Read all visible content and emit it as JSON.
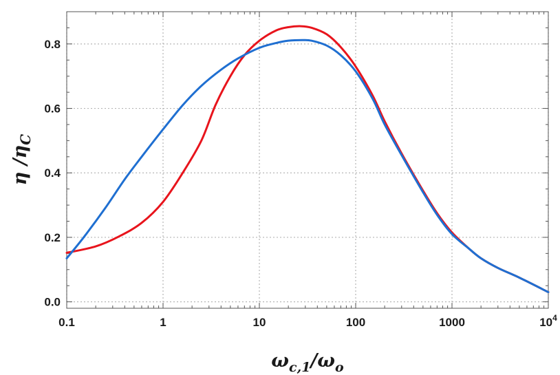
{
  "chart_data": {
    "type": "line",
    "title": "",
    "xlabel": {
      "main": "ω",
      "sub1": "c,1",
      "mid": "/ω",
      "sub2": "o"
    },
    "ylabel": {
      "main": "η /η",
      "sub": "C"
    },
    "x_scale": "log",
    "xlim": [
      0.1,
      10000
    ],
    "ylim": [
      -0.02,
      0.9
    ],
    "grid": true,
    "x_ticks": [
      {
        "value": 0.1,
        "label": "0.1"
      },
      {
        "value": 1,
        "label": "1"
      },
      {
        "value": 10,
        "label": "10"
      },
      {
        "value": 100,
        "label": "100"
      },
      {
        "value": 1000,
        "label": "1000"
      },
      {
        "value": 10000,
        "label": "10",
        "sup": "4"
      }
    ],
    "y_ticks": [
      {
        "value": 0.0,
        "label": "0.0"
      },
      {
        "value": 0.2,
        "label": "0.2"
      },
      {
        "value": 0.4,
        "label": "0.4"
      },
      {
        "value": 0.6,
        "label": "0.6"
      },
      {
        "value": 0.8,
        "label": "0.8"
      }
    ],
    "series": [
      {
        "color": "#e8141c",
        "x": [
          0.1,
          0.2,
          0.35,
          0.6,
          1,
          1.6,
          2.5,
          3.5,
          5,
          7,
          10,
          15,
          20,
          27,
          35,
          50,
          70,
          100,
          150,
          200,
          300,
          500,
          700,
          1000,
          1500,
          2000,
          3000,
          5000,
          10000
        ],
        "y": [
          0.152,
          0.172,
          0.203,
          0.245,
          0.31,
          0.4,
          0.5,
          0.61,
          0.7,
          0.765,
          0.81,
          0.842,
          0.852,
          0.855,
          0.85,
          0.83,
          0.79,
          0.73,
          0.64,
          0.56,
          0.46,
          0.345,
          0.275,
          0.215,
          0.165,
          0.135,
          0.105,
          0.075,
          0.03
        ]
      },
      {
        "color": "#1f6fd1",
        "x": [
          0.1,
          0.15,
          0.25,
          0.4,
          0.6,
          1,
          1.6,
          2.5,
          4,
          6,
          10,
          15,
          20,
          28,
          35,
          50,
          70,
          100,
          150,
          200,
          300,
          500,
          700,
          1000,
          1500,
          2000,
          3000,
          5000,
          10000
        ],
        "y": [
          0.135,
          0.2,
          0.29,
          0.38,
          0.45,
          0.535,
          0.61,
          0.67,
          0.72,
          0.755,
          0.788,
          0.803,
          0.81,
          0.812,
          0.81,
          0.795,
          0.765,
          0.715,
          0.63,
          0.55,
          0.455,
          0.34,
          0.27,
          0.21,
          0.165,
          0.135,
          0.105,
          0.075,
          0.03
        ]
      }
    ]
  }
}
